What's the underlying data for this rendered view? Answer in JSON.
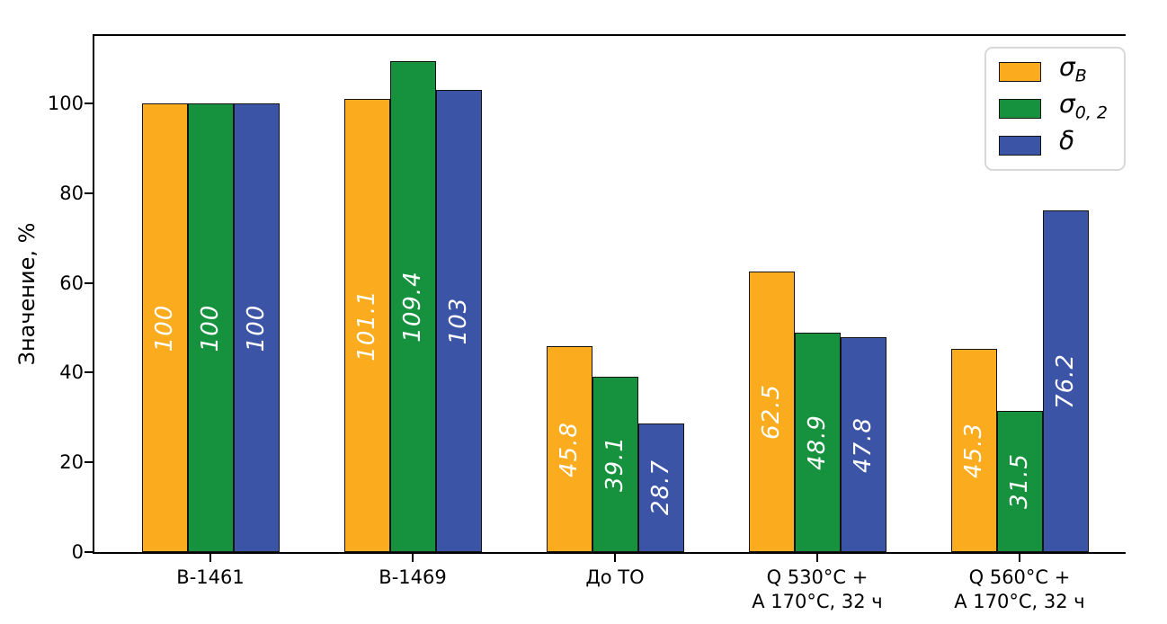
{
  "chart_data": {
    "type": "bar",
    "title": "",
    "ylabel": "Значение, %",
    "xlabel": "",
    "ylim": [
      0,
      114.6
    ],
    "yticks": [
      0,
      20,
      40,
      60,
      80,
      100
    ],
    "grid": false,
    "legend_position": "upper right",
    "bar_value_label_color": "#ffffff",
    "bar_edge_color": "#141414",
    "categories": [
      "В-1461",
      "В-1469",
      "До ТО",
      "Q 530°C +\nA 170°C, 32 ч",
      "Q 560°C +\nA 170°C, 32 ч"
    ],
    "series": [
      {
        "name": "σB",
        "color": "#FAAC1E",
        "values": [
          100,
          101.1,
          45.8,
          62.5,
          45.3
        ]
      },
      {
        "name": "σ0,2",
        "color": "#16923F",
        "values": [
          100,
          109.4,
          39.1,
          48.9,
          31.5
        ]
      },
      {
        "name": "δ",
        "color": "#3C54A6",
        "values": [
          100,
          103,
          28.7,
          47.8,
          76.2
        ]
      }
    ],
    "legend": {
      "items": [
        {
          "symbol": "σ",
          "subscript": "B"
        },
        {
          "symbol": "σ",
          "subscript": "0, 2"
        },
        {
          "symbol": "δ",
          "subscript": ""
        }
      ]
    }
  }
}
